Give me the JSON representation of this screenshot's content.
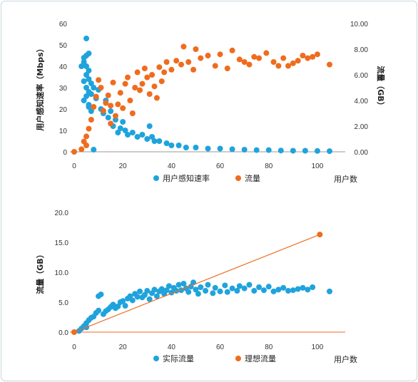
{
  "colors": {
    "blue": "#1fa3dc",
    "orange": "#ef6c1e",
    "axis": "#999999"
  },
  "chart_data": [
    {
      "type": "scatter",
      "xlabel": "用户数",
      "ylabel": "用户感知速率（Mbps）",
      "y2label": "流量（GB）",
      "xlim": [
        0,
        105
      ],
      "ylim": [
        0,
        60
      ],
      "y2lim": [
        0,
        10
      ],
      "xticks": [
        "0",
        "20",
        "40",
        "60",
        "80",
        "100"
      ],
      "yticks": [
        "0",
        "10",
        "20",
        "30",
        "40",
        "50",
        "60"
      ],
      "y2ticks": [
        "0.00",
        "2.00",
        "4.00",
        "6.00",
        "8.00",
        "10.00"
      ],
      "legend_position": "bottom",
      "series": [
        {
          "name": "用户感知速率",
          "axis": "left",
          "color": "blue",
          "points": [
            [
              5,
              53
            ],
            [
              4,
              44
            ],
            [
              5,
              45
            ],
            [
              6,
              46
            ],
            [
              4,
              42
            ],
            [
              5,
              40
            ],
            [
              6,
              38
            ],
            [
              5,
              36
            ],
            [
              4,
              33
            ],
            [
              6,
              34
            ],
            [
              5,
              30
            ],
            [
              7,
              32
            ],
            [
              6,
              28
            ],
            [
              5,
              26
            ],
            [
              4,
              24
            ],
            [
              6,
              22
            ],
            [
              7,
              27
            ],
            [
              8,
              30
            ],
            [
              9,
              25
            ],
            [
              10,
              29
            ],
            [
              11,
              20
            ],
            [
              12,
              18
            ],
            [
              13,
              24
            ],
            [
              14,
              16
            ],
            [
              15,
              19
            ],
            [
              16,
              12
            ],
            [
              17,
              15
            ],
            [
              18,
              9
            ],
            [
              19,
              11
            ],
            [
              20,
              14
            ],
            [
              21,
              10
            ],
            [
              22,
              8
            ],
            [
              24,
              9
            ],
            [
              26,
              7
            ],
            [
              28,
              8
            ],
            [
              30,
              6
            ],
            [
              31,
              12
            ],
            [
              32,
              7
            ],
            [
              33,
              5
            ],
            [
              35,
              5
            ],
            [
              38,
              4
            ],
            [
              40,
              3
            ],
            [
              43,
              3
            ],
            [
              46,
              2
            ],
            [
              50,
              2
            ],
            [
              55,
              1.5
            ],
            [
              60,
              1.5
            ],
            [
              65,
              1.2
            ],
            [
              70,
              1
            ],
            [
              75,
              0.8
            ],
            [
              80,
              0.8
            ],
            [
              85,
              0.6
            ],
            [
              90,
              0.5
            ],
            [
              95,
              0.5
            ],
            [
              100,
              0.4
            ],
            [
              105,
              0.3
            ],
            [
              8,
              1
            ],
            [
              6,
              21
            ],
            [
              3,
              40
            ],
            [
              7,
              19
            ]
          ]
        },
        {
          "name": "流量",
          "axis": "right",
          "color": "orange",
          "points": [
            [
              0,
              0
            ],
            [
              3,
              0.2
            ],
            [
              4,
              0.8
            ],
            [
              5,
              1.2
            ],
            [
              6,
              1.8
            ],
            [
              5,
              0.5
            ],
            [
              7,
              2.5
            ],
            [
              8,
              3.5
            ],
            [
              9,
              4.3
            ],
            [
              10,
              5.6
            ],
            [
              11,
              5.0
            ],
            [
              12,
              3.2
            ],
            [
              13,
              3.8
            ],
            [
              14,
              4.4
            ],
            [
              15,
              3.6
            ],
            [
              16,
              5.4
            ],
            [
              18,
              3.7
            ],
            [
              19,
              4.6
            ],
            [
              20,
              3.4
            ],
            [
              21,
              5.3
            ],
            [
              22,
              5.8
            ],
            [
              23,
              4.0
            ],
            [
              25,
              5.0
            ],
            [
              26,
              6.2
            ],
            [
              27,
              4.8
            ],
            [
              28,
              5.3
            ],
            [
              29,
              6.5
            ],
            [
              30,
              5.8
            ],
            [
              31,
              4.5
            ],
            [
              32,
              6.0
            ],
            [
              33,
              5.1
            ],
            [
              35,
              6.6
            ],
            [
              36,
              5.5
            ],
            [
              37,
              6.2
            ],
            [
              38,
              7.0
            ],
            [
              40,
              6.4
            ],
            [
              42,
              7.1
            ],
            [
              44,
              6.8
            ],
            [
              45,
              8.2
            ],
            [
              47,
              7.0
            ],
            [
              49,
              6.4
            ],
            [
              50,
              8.0
            ],
            [
              52,
              7.3
            ],
            [
              55,
              7.5
            ],
            [
              58,
              6.7
            ],
            [
              60,
              7.6
            ],
            [
              63,
              6.5
            ],
            [
              65,
              7.9
            ],
            [
              68,
              7.2
            ],
            [
              70,
              7.0
            ],
            [
              72,
              6.8
            ],
            [
              74,
              7.4
            ],
            [
              76,
              7.3
            ],
            [
              79,
              7.7
            ],
            [
              82,
              7.0
            ],
            [
              84,
              6.7
            ],
            [
              86,
              7.3
            ],
            [
              88,
              6.7
            ],
            [
              90,
              6.9
            ],
            [
              92,
              7.1
            ],
            [
              94,
              7.5
            ],
            [
              96,
              7.3
            ],
            [
              98,
              7.4
            ],
            [
              100,
              7.6
            ],
            [
              105,
              6.8
            ],
            [
              15,
              2.2
            ],
            [
              17,
              2.8
            ],
            [
              24,
              3.0
            ],
            [
              34,
              4.2
            ]
          ]
        }
      ]
    },
    {
      "type": "scatter",
      "xlabel": "用户数",
      "ylabel": "流量（GB）",
      "xlim": [
        0,
        105
      ],
      "ylim": [
        0,
        20
      ],
      "xticks": [
        "0",
        "20",
        "40",
        "60",
        "80",
        "100"
      ],
      "yticks": [
        "0.0",
        "5.0",
        "10.0",
        "15.0",
        "20.0"
      ],
      "legend_position": "bottom",
      "series": [
        {
          "name": "实际流量",
          "color": "blue",
          "points": [
            [
              2,
              0.2
            ],
            [
              3,
              0.6
            ],
            [
              4,
              1.0
            ],
            [
              5,
              1.5
            ],
            [
              6,
              2.0
            ],
            [
              7,
              2.4
            ],
            [
              5,
              0.8
            ],
            [
              8,
              2.6
            ],
            [
              9,
              3.2
            ],
            [
              10,
              3.6
            ],
            [
              10,
              6.0
            ],
            [
              11,
              6.3
            ],
            [
              12,
              3.0
            ],
            [
              13,
              3.5
            ],
            [
              14,
              3.8
            ],
            [
              15,
              4.2
            ],
            [
              16,
              4.6
            ],
            [
              17,
              4.0
            ],
            [
              18,
              4.3
            ],
            [
              19,
              5.0
            ],
            [
              20,
              5.2
            ],
            [
              21,
              4.4
            ],
            [
              22,
              5.6
            ],
            [
              23,
              6.0
            ],
            [
              24,
              5.3
            ],
            [
              25,
              6.4
            ],
            [
              26,
              5.9
            ],
            [
              27,
              6.8
            ],
            [
              28,
              5.8
            ],
            [
              29,
              6.2
            ],
            [
              30,
              6.9
            ],
            [
              31,
              5.5
            ],
            [
              32,
              6.5
            ],
            [
              33,
              7.1
            ],
            [
              34,
              6.0
            ],
            [
              35,
              6.8
            ],
            [
              36,
              7.2
            ],
            [
              37,
              6.4
            ],
            [
              38,
              7.0
            ],
            [
              39,
              7.7
            ],
            [
              40,
              6.6
            ],
            [
              41,
              7.4
            ],
            [
              42,
              6.9
            ],
            [
              43,
              7.9
            ],
            [
              44,
              7.0
            ],
            [
              45,
              8.1
            ],
            [
              46,
              7.3
            ],
            [
              47,
              6.7
            ],
            [
              48,
              7.6
            ],
            [
              49,
              8.3
            ],
            [
              50,
              7.1
            ],
            [
              51,
              6.4
            ],
            [
              52,
              7.5
            ],
            [
              54,
              6.9
            ],
            [
              55,
              7.9
            ],
            [
              57,
              6.5
            ],
            [
              58,
              7.4
            ],
            [
              60,
              6.8
            ],
            [
              62,
              7.8
            ],
            [
              63,
              6.7
            ],
            [
              65,
              7.3
            ],
            [
              67,
              6.9
            ],
            [
              68,
              7.7
            ],
            [
              70,
              7.3
            ],
            [
              72,
              7.9
            ],
            [
              74,
              6.9
            ],
            [
              76,
              7.5
            ],
            [
              78,
              7.0
            ],
            [
              80,
              7.6
            ],
            [
              82,
              6.8
            ],
            [
              84,
              7.1
            ],
            [
              86,
              7.4
            ],
            [
              88,
              6.9
            ],
            [
              90,
              7.0
            ],
            [
              92,
              7.2
            ],
            [
              94,
              7.4
            ],
            [
              96,
              7.1
            ],
            [
              98,
              7.5
            ],
            [
              105,
              6.8
            ]
          ]
        },
        {
          "name": "理想流量",
          "color": "orange",
          "points": [
            [
              0,
              0
            ],
            [
              101,
              16.3
            ]
          ]
        }
      ]
    }
  ]
}
